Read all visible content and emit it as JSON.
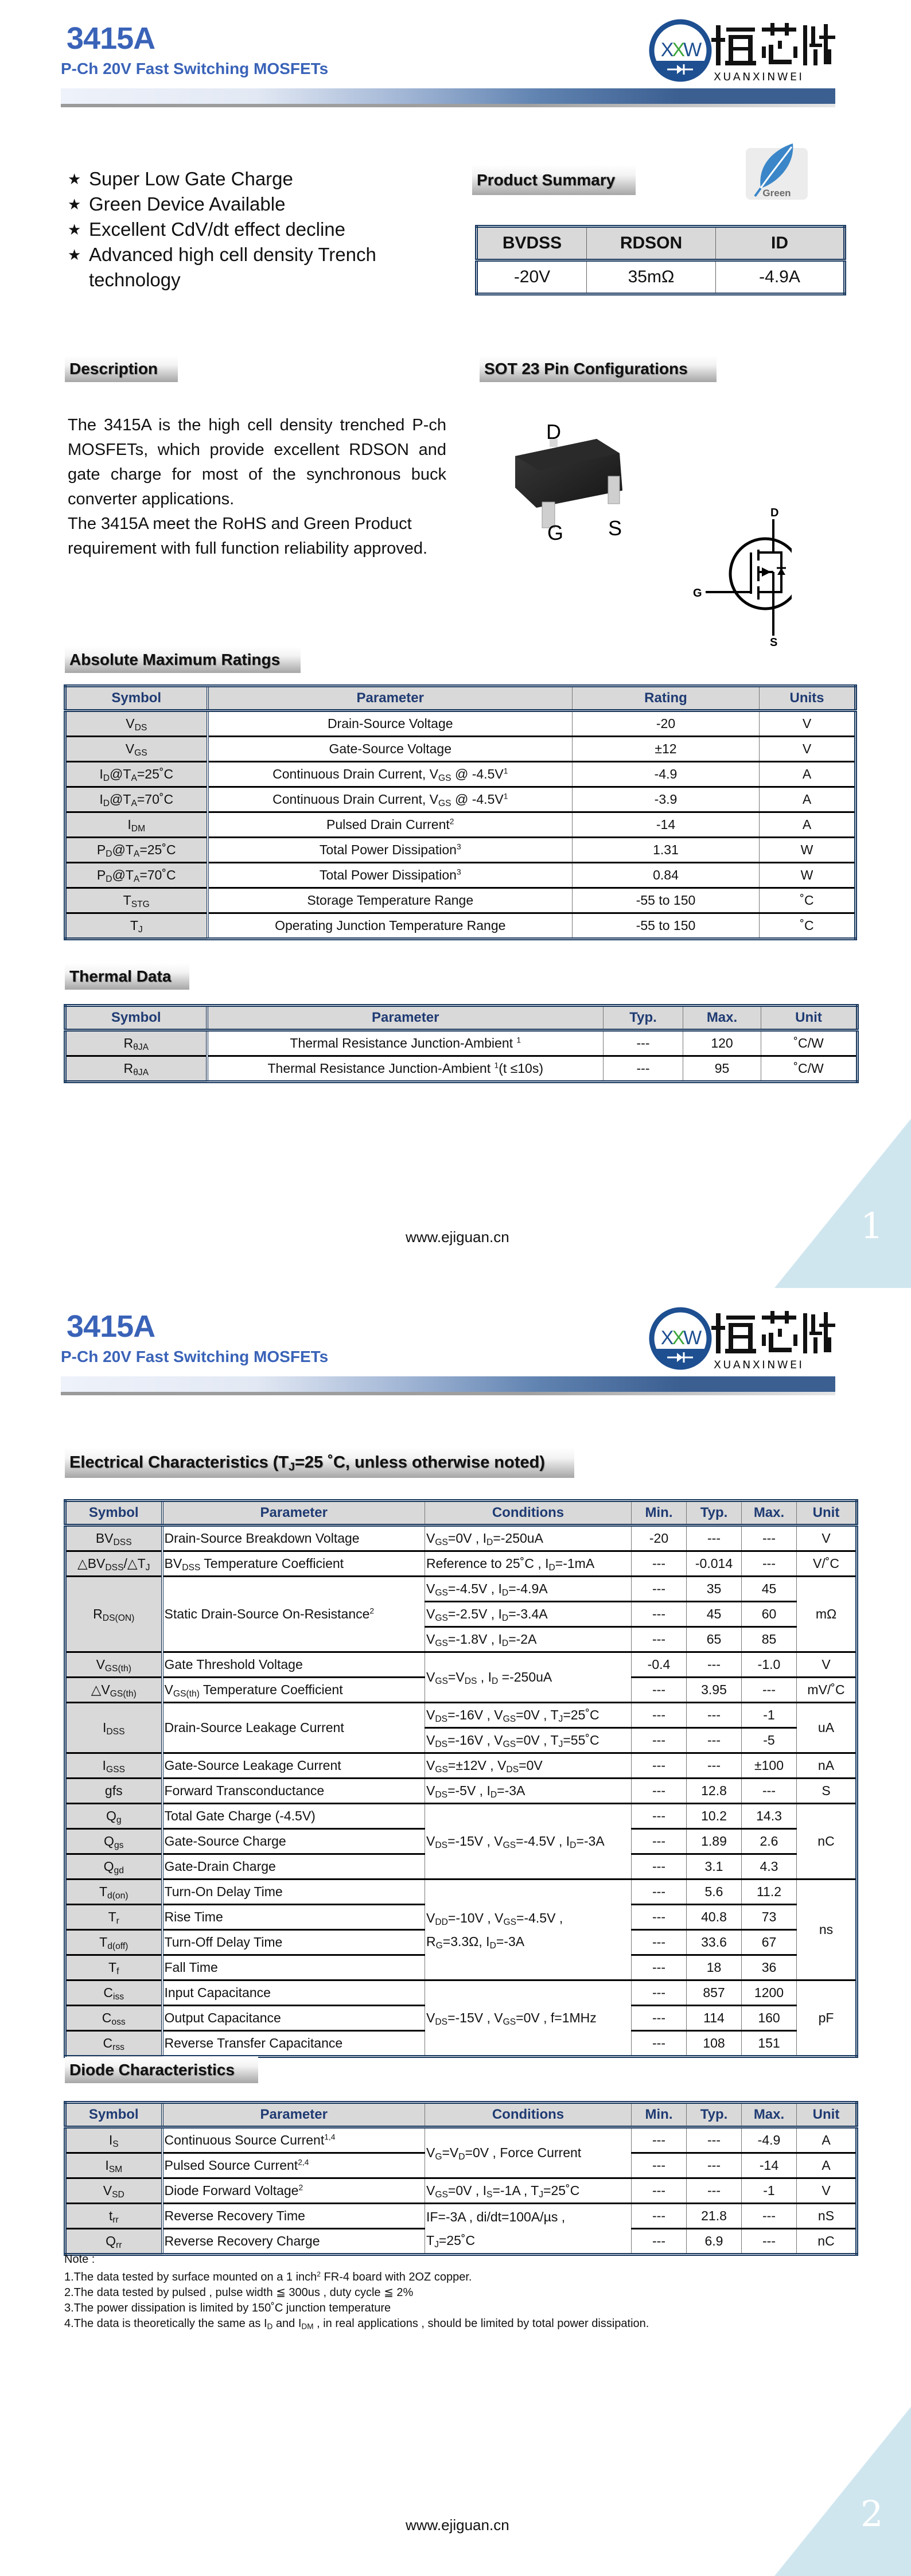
{
  "header": {
    "part": "3415A",
    "subtitle": "P-Ch 20V Fast Switching MOSFETs"
  },
  "logo": {
    "mark": "XXW",
    "brand_cn": "烜芯微",
    "brand_en": "XUANXINWEI",
    "color": "#1d4f91"
  },
  "features": [
    "Super Low Gate Charge",
    "Green Device Available",
    "Excellent CdV/dt effect decline",
    "Advanced high cell density Trench technology"
  ],
  "bullet_icon": "star-icon",
  "product_summary": {
    "title": "Product Summary",
    "headers": [
      "BVDSS",
      "RDSON",
      "ID"
    ],
    "values": [
      "-20V",
      "35mΩ",
      "-4.9A"
    ],
    "badge": "Green"
  },
  "description": {
    "title": "Description",
    "paragraphs": [
      "The 3415A is the high cell density trenched P-ch MOSFETs, which provide excellent RDSON and gate charge for most of the synchronous buck converter applications.",
      "The 3415A meet the RoHS and Green Product requirement with full function reliability approved."
    ]
  },
  "pin_config": {
    "title": "SOT 23 Pin Configurations",
    "package_pins": {
      "d": "D",
      "g": "G",
      "s": "S"
    },
    "schematic_pins": {
      "d": "D",
      "g": "G",
      "s": "S"
    }
  },
  "abs_max": {
    "title": "Absolute Maximum Ratings",
    "headers": [
      "Symbol",
      "Parameter",
      "Rating",
      "Units"
    ],
    "rows": [
      {
        "symbol": [
          "V",
          [
            "DS",
            "sub"
          ]
        ],
        "parameter": [
          "Drain-Source Voltage"
        ],
        "rating": "-20",
        "unit": "V"
      },
      {
        "symbol": [
          "V",
          [
            "GS",
            "sub"
          ]
        ],
        "parameter": [
          "Gate-Source Voltage"
        ],
        "rating": "±12",
        "unit": "V"
      },
      {
        "symbol": [
          "I",
          [
            "D",
            "sub"
          ],
          "@T",
          [
            "A",
            "sub"
          ],
          "=25˚C"
        ],
        "parameter": [
          "Continuous Drain Current, V",
          [
            "GS",
            "sub"
          ],
          " @ -4.5V",
          [
            "1",
            "sup"
          ]
        ],
        "rating": "-4.9",
        "unit": "A"
      },
      {
        "symbol": [
          "I",
          [
            "D",
            "sub"
          ],
          "@T",
          [
            "A",
            "sub"
          ],
          "=70˚C"
        ],
        "parameter": [
          "Continuous Drain Current, V",
          [
            "GS",
            "sub"
          ],
          " @ -4.5V",
          [
            "1",
            "sup"
          ]
        ],
        "rating": "-3.9",
        "unit": "A"
      },
      {
        "symbol": [
          "I",
          [
            "DM",
            "sub"
          ]
        ],
        "parameter": [
          "Pulsed Drain Current",
          [
            "2",
            "sup"
          ]
        ],
        "rating": "-14",
        "unit": "A"
      },
      {
        "symbol": [
          "P",
          [
            "D",
            "sub"
          ],
          "@T",
          [
            "A",
            "sub"
          ],
          "=25˚C"
        ],
        "parameter": [
          "Total Power Dissipation",
          [
            "3",
            "sup"
          ]
        ],
        "rating": "1.31",
        "unit": "W"
      },
      {
        "symbol": [
          "P",
          [
            "D",
            "sub"
          ],
          "@T",
          [
            "A",
            "sub"
          ],
          "=70˚C"
        ],
        "parameter": [
          "Total Power Dissipation",
          [
            "3",
            "sup"
          ]
        ],
        "rating": "0.84",
        "unit": "W"
      },
      {
        "symbol": [
          "T",
          [
            "STG",
            "sub"
          ]
        ],
        "parameter": [
          "Storage Temperature Range"
        ],
        "rating": "-55 to 150",
        "unit": "˚C"
      },
      {
        "symbol": [
          "T",
          [
            "J",
            "sub"
          ]
        ],
        "parameter": [
          "Operating Junction Temperature Range"
        ],
        "rating": "-55 to 150",
        "unit": "˚C"
      }
    ]
  },
  "thermal": {
    "title": "Thermal Data",
    "headers": [
      "Symbol",
      "Parameter",
      "Typ.",
      "Max.",
      "Unit"
    ],
    "rows": [
      {
        "symbol": [
          "R",
          [
            "θJA",
            "sub"
          ]
        ],
        "parameter": [
          "Thermal Resistance Junction-Ambient ",
          [
            "1",
            "sup"
          ]
        ],
        "typ": "---",
        "max": "120",
        "unit": "˚C/W"
      },
      {
        "symbol": [
          "R",
          [
            "θJA",
            "sub"
          ]
        ],
        "parameter": [
          "Thermal Resistance Junction-Ambient ",
          [
            "1",
            "sup"
          ],
          "(t ≤10s)"
        ],
        "typ": "---",
        "max": "95",
        "unit": "˚C/W"
      }
    ]
  },
  "electrical": {
    "title": [
      "Electrical Characteristics (T",
      [
        "J",
        "sub"
      ],
      "=25 ˚C, unless otherwise noted)"
    ],
    "headers": [
      "Symbol",
      "Parameter",
      "Conditions",
      "Min.",
      "Typ.",
      "Max.",
      "Unit"
    ],
    "rows": [
      {
        "symbol": [
          "BV",
          [
            "DSS",
            "sub"
          ]
        ],
        "parameter": [
          "Drain-Source Breakdown Voltage"
        ],
        "conditions": [
          "V",
          [
            "GS",
            "sub"
          ],
          "=0V , I",
          [
            "D",
            "sub"
          ],
          "=-250uA"
        ],
        "min": "-20",
        "typ": "---",
        "max": "---",
        "unit": "V"
      },
      {
        "symbol": [
          "△BV",
          [
            "DSS",
            "sub"
          ],
          "/△T",
          [
            "J",
            "sub"
          ]
        ],
        "parameter": [
          "BV",
          [
            "DSS",
            "sub"
          ],
          " Temperature Coefficient"
        ],
        "conditions": [
          "Reference to 25˚C , I",
          [
            "D",
            "sub"
          ],
          "=-1mA"
        ],
        "min": "---",
        "typ": "-0.014",
        "max": "---",
        "unit": "V/˚C"
      },
      {
        "symbol": [
          "R",
          [
            "DS(ON)",
            "sub"
          ]
        ],
        "parameter": [
          "Static Drain-Source On-Resistance",
          [
            "2",
            "sup"
          ]
        ],
        "conditions": [
          "V",
          [
            "GS",
            "sub"
          ],
          "=-4.5V , I",
          [
            "D",
            "sub"
          ],
          "=-4.9A"
        ],
        "min": "---",
        "typ": "35",
        "max": "45",
        "unit": "mΩ"
      },
      {
        "symbol": null,
        "parameter": null,
        "conditions": [
          "V",
          [
            "GS",
            "sub"
          ],
          "=-2.5V , I",
          [
            "D",
            "sub"
          ],
          "=-3.4A"
        ],
        "min": "---",
        "typ": "45",
        "max": "60",
        "unit": null
      },
      {
        "symbol": null,
        "parameter": null,
        "conditions": [
          "V",
          [
            "GS",
            "sub"
          ],
          "=-1.8V , I",
          [
            "D",
            "sub"
          ],
          "=-2A"
        ],
        "min": "---",
        "typ": "65",
        "max": "85",
        "unit": null
      },
      {
        "symbol": [
          "V",
          [
            "GS(th)",
            "sub"
          ]
        ],
        "parameter": [
          "Gate Threshold Voltage"
        ],
        "conditions": [
          "V",
          [
            "GS",
            "sub"
          ],
          "=V",
          [
            "DS",
            "sub"
          ],
          " , I",
          [
            "D",
            "sub"
          ],
          " =-250uA"
        ],
        "min": "-0.4",
        "typ": "---",
        "max": "-1.0",
        "unit": "V"
      },
      {
        "symbol": [
          "△V",
          [
            "GS(th)",
            "sub"
          ]
        ],
        "parameter": [
          "V",
          [
            "GS(th)",
            "sub"
          ],
          " Temperature Coefficient"
        ],
        "conditions": null,
        "min": "---",
        "typ": "3.95",
        "max": "---",
        "unit": "mV/˚C"
      },
      {
        "symbol": [
          "I",
          [
            "DSS",
            "sub"
          ]
        ],
        "parameter": [
          "Drain-Source Leakage Current"
        ],
        "conditions": [
          "V",
          [
            "DS",
            "sub"
          ],
          "=-16V , V",
          [
            "GS",
            "sub"
          ],
          "=0V , T",
          [
            "J",
            "sub"
          ],
          "=25˚C"
        ],
        "min": "---",
        "typ": "---",
        "max": "-1",
        "unit": "uA"
      },
      {
        "symbol": null,
        "parameter": null,
        "conditions": [
          "V",
          [
            "DS",
            "sub"
          ],
          "=-16V , V",
          [
            "GS",
            "sub"
          ],
          "=0V , T",
          [
            "J",
            "sub"
          ],
          "=55˚C"
        ],
        "min": "---",
        "typ": "---",
        "max": "-5",
        "unit": null
      },
      {
        "symbol": [
          "I",
          [
            "GSS",
            "sub"
          ]
        ],
        "parameter": [
          "Gate-Source Leakage Current"
        ],
        "conditions": [
          "V",
          [
            "GS",
            "sub"
          ],
          "=±12V , V",
          [
            "DS",
            "sub"
          ],
          "=0V"
        ],
        "min": "---",
        "typ": "---",
        "max": "±100",
        "unit": "nA"
      },
      {
        "symbol": [
          "gfs"
        ],
        "parameter": [
          "Forward Transconductance"
        ],
        "conditions": [
          "V",
          [
            "DS",
            "sub"
          ],
          "=-5V , I",
          [
            "D",
            "sub"
          ],
          "=-3A"
        ],
        "min": "---",
        "typ": "12.8",
        "max": "---",
        "unit": "S"
      },
      {
        "symbol": [
          "Q",
          [
            "g",
            "sub"
          ]
        ],
        "parameter": [
          "Total Gate Charge (-4.5V)"
        ],
        "conditions": [
          "V",
          [
            "DS",
            "sub"
          ],
          "=-15V , V",
          [
            "GS",
            "sub"
          ],
          "=-4.5V , I",
          [
            "D",
            "sub"
          ],
          "=-3A"
        ],
        "min": "---",
        "typ": "10.2",
        "max": "14.3",
        "unit": "nC"
      },
      {
        "symbol": [
          "Q",
          [
            "gs",
            "sub"
          ]
        ],
        "parameter": [
          "Gate-Source Charge"
        ],
        "conditions": null,
        "min": "---",
        "typ": "1.89",
        "max": "2.6",
        "unit": null
      },
      {
        "symbol": [
          "Q",
          [
            "gd",
            "sub"
          ]
        ],
        "parameter": [
          "Gate-Drain Charge"
        ],
        "conditions": null,
        "min": "---",
        "typ": "3.1",
        "max": "4.3",
        "unit": null
      },
      {
        "symbol": [
          "T",
          [
            "d(on)",
            "sub"
          ]
        ],
        "parameter": [
          "Turn-On Delay Time"
        ],
        "conditions": [
          "V",
          [
            "DD",
            "sub"
          ],
          "=-10V , V",
          [
            "GS",
            "sub"
          ],
          "=-4.5V ,",
          "\n",
          "R",
          [
            "G",
            "sub"
          ],
          "=3.3Ω, I",
          [
            "D",
            "sub"
          ],
          "=-3A"
        ],
        "min": "---",
        "typ": "5.6",
        "max": "11.2",
        "unit": "ns"
      },
      {
        "symbol": [
          "T",
          [
            "r",
            "sub"
          ]
        ],
        "parameter": [
          "Rise Time"
        ],
        "conditions": null,
        "min": "---",
        "typ": "40.8",
        "max": "73",
        "unit": null
      },
      {
        "symbol": [
          "T",
          [
            "d(off)",
            "sub"
          ]
        ],
        "parameter": [
          "Turn-Off Delay Time"
        ],
        "conditions": null,
        "min": "---",
        "typ": "33.6",
        "max": "67",
        "unit": null
      },
      {
        "symbol": [
          "T",
          [
            "f",
            "sub"
          ]
        ],
        "parameter": [
          "Fall Time"
        ],
        "conditions": null,
        "min": "---",
        "typ": "18",
        "max": "36",
        "unit": null
      },
      {
        "symbol": [
          "C",
          [
            "iss",
            "sub"
          ]
        ],
        "parameter": [
          "Input Capacitance"
        ],
        "conditions": [
          "V",
          [
            "DS",
            "sub"
          ],
          "=-15V , V",
          [
            "GS",
            "sub"
          ],
          "=0V , f=1MHz"
        ],
        "min": "---",
        "typ": "857",
        "max": "1200",
        "unit": "pF"
      },
      {
        "symbol": [
          "C",
          [
            "oss",
            "sub"
          ]
        ],
        "parameter": [
          "Output Capacitance"
        ],
        "conditions": null,
        "min": "---",
        "typ": "114",
        "max": "160",
        "unit": null
      },
      {
        "symbol": [
          "C",
          [
            "rss",
            "sub"
          ]
        ],
        "parameter": [
          "Reverse Transfer Capacitance"
        ],
        "conditions": null,
        "min": "---",
        "typ": "108",
        "max": "151",
        "unit": null
      }
    ]
  },
  "diode": {
    "title": "Diode Characteristics",
    "headers": [
      "Symbol",
      "Parameter",
      "Conditions",
      "Min.",
      "Typ.",
      "Max.",
      "Unit"
    ],
    "rows": [
      {
        "symbol": [
          "I",
          [
            "S",
            "sub"
          ]
        ],
        "parameter": [
          "Continuous Source Current",
          [
            "1,4",
            "sup"
          ]
        ],
        "conditions": [
          "V",
          [
            "G",
            "sub"
          ],
          "=V",
          [
            "D",
            "sub"
          ],
          "=0V , Force Current"
        ],
        "min": "---",
        "typ": "---",
        "max": "-4.9",
        "unit": "A"
      },
      {
        "symbol": [
          "I",
          [
            "SM",
            "sub"
          ]
        ],
        "parameter": [
          "Pulsed Source Current",
          [
            "2,4",
            "sup"
          ]
        ],
        "conditions": null,
        "min": "---",
        "typ": "---",
        "max": "-14",
        "unit": "A"
      },
      {
        "symbol": [
          "V",
          [
            "SD",
            "sub"
          ]
        ],
        "parameter": [
          "Diode Forward Voltage",
          [
            "2",
            "sup"
          ]
        ],
        "conditions": [
          "V",
          [
            "GS",
            "sub"
          ],
          "=0V , I",
          [
            "S",
            "sub"
          ],
          "=-1A , T",
          [
            "J",
            "sub"
          ],
          "=25˚C"
        ],
        "min": "---",
        "typ": "---",
        "max": "-1",
        "unit": "V"
      },
      {
        "symbol": [
          "t",
          [
            "rr",
            "sub"
          ]
        ],
        "parameter": [
          "Reverse Recovery Time"
        ],
        "conditions": [
          "IF=-3A , di/dt=100A/µs ,",
          "\n",
          "T",
          [
            "J",
            "sub"
          ],
          "=25˚C"
        ],
        "min": "---",
        "typ": "21.8",
        "max": "---",
        "unit": "nS"
      },
      {
        "symbol": [
          "Q",
          [
            "rr",
            "sub"
          ]
        ],
        "parameter": [
          "Reverse Recovery Charge"
        ],
        "conditions": null,
        "min": "---",
        "typ": "6.9",
        "max": "---",
        "unit": "nC"
      }
    ]
  },
  "notes": {
    "title": "Note :",
    "items": [
      [
        "1.The data tested by surface mounted on a 1 inch",
        [
          "2",
          "sup"
        ],
        " FR-4 board with 2OZ copper."
      ],
      [
        "2.The data tested by pulsed , pulse width ≦ 300us , duty cycle ≦ 2%"
      ],
      [
        "3.The power dissipation is limited by 150˚C  junction temperature"
      ],
      [
        "4.The data is theoretically the same as I",
        [
          "D",
          "sub"
        ],
        " and I",
        [
          "DM",
          "sub"
        ],
        " , in real applications , should be limited by total power dissipation."
      ]
    ]
  },
  "footer": {
    "url": "www.ejiguan.cn"
  },
  "page_numbers": [
    "1",
    "2"
  ],
  "colors": {
    "title": "#3a63b8",
    "table_border": "#17375e",
    "header_text": "#1f3b73",
    "corner_triangle": "#d0e6ef"
  }
}
